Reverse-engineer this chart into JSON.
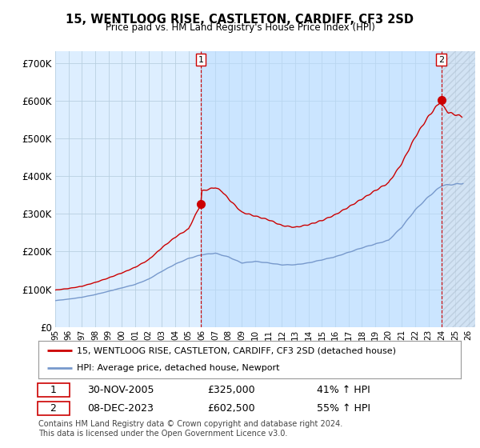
{
  "title": "15, WENTLOOG RISE, CASTLETON, CARDIFF, CF3 2SD",
  "subtitle": "Price paid vs. HM Land Registry's House Price Index (HPI)",
  "ylim": [
    0,
    730000
  ],
  "yticks": [
    0,
    100000,
    200000,
    300000,
    400000,
    500000,
    600000,
    700000
  ],
  "ytick_labels": [
    "£0",
    "£100K",
    "£200K",
    "£300K",
    "£400K",
    "£500K",
    "£600K",
    "£700K"
  ],
  "background_color": "#ffffff",
  "chart_bg_color": "#ddeeff",
  "grid_color": "#b8cfe0",
  "hpi_color": "#7799cc",
  "price_color": "#cc0000",
  "vline_color": "#cc0000",
  "sale1_price": 325000,
  "sale1_date": "30-NOV-2005",
  "sale1_pct": "41% ↑ HPI",
  "sale2_price": 602500,
  "sale2_date": "08-DEC-2023",
  "sale2_pct": "55% ↑ HPI",
  "legend_label_price": "15, WENTLOOG RISE, CASTLETON, CARDIFF, CF3 2SD (detached house)",
  "legend_label_hpi": "HPI: Average price, detached house, Newport",
  "footer": "Contains HM Land Registry data © Crown copyright and database right 2024.\nThis data is licensed under the Open Government Licence v3.0.",
  "sale1_x": 2005.917,
  "sale2_x": 2023.958,
  "xlim": [
    1995.0,
    2026.5
  ],
  "xtick_years": [
    1995,
    1996,
    1997,
    1998,
    1999,
    2000,
    2001,
    2002,
    2003,
    2004,
    2005,
    2006,
    2007,
    2008,
    2009,
    2010,
    2011,
    2012,
    2013,
    2014,
    2015,
    2016,
    2017,
    2018,
    2019,
    2020,
    2021,
    2022,
    2023,
    2024,
    2025,
    2026
  ]
}
